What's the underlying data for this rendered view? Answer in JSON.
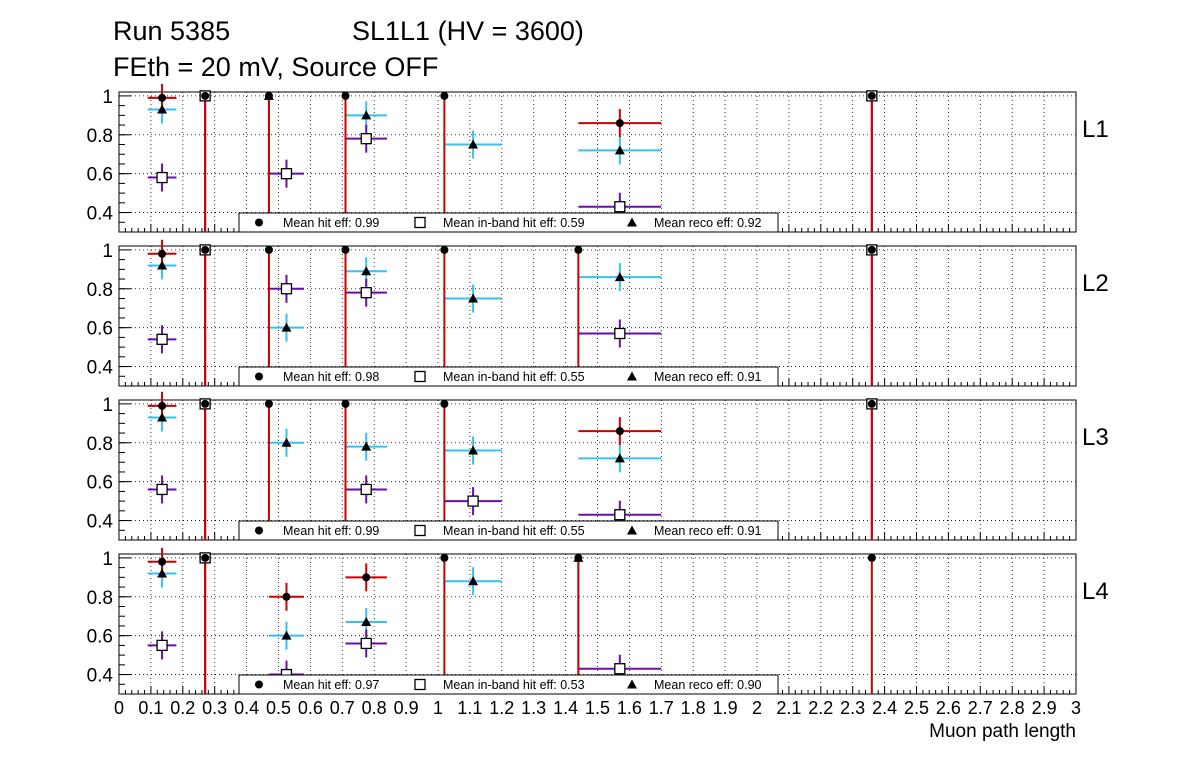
{
  "title": {
    "run": "Run 5385",
    "chamber": "SL1L1 (HV = 3600)",
    "line2": "FEth = 20 mV, Source OFF"
  },
  "colors": {
    "hit": "#cc0000",
    "inband": "#6a0dad",
    "reco": "#33c3ef",
    "marker": "#000000",
    "grid": "#000000"
  },
  "chart_data": {
    "type": "scatter",
    "xlabel": "Muon path length",
    "xlim": [
      0,
      3
    ],
    "ylim": [
      0.3,
      1.02
    ],
    "y_ticks": [
      0.4,
      0.6,
      0.8,
      1
    ],
    "y_tick_labels": [
      "0.4",
      "0.6",
      "0.8",
      "1"
    ],
    "x_ticks": [
      0,
      0.1,
      0.2,
      0.3,
      0.4,
      0.5,
      0.6,
      0.7,
      0.8,
      0.9,
      1,
      1.1,
      1.2,
      1.3,
      1.4,
      1.5,
      1.6,
      1.7,
      1.8,
      1.9,
      2,
      2.1,
      2.2,
      2.3,
      2.4,
      2.5,
      2.6,
      2.7,
      2.8,
      2.9,
      3
    ],
    "x_tick_labels": [
      "0",
      "0.1",
      "0.2",
      "0.3",
      "0.4",
      "0.5",
      "0.6",
      "0.7",
      "0.8",
      "0.9",
      "1",
      "1.1",
      "1.2",
      "1.3",
      "1.4",
      "1.5",
      "1.6",
      "1.7",
      "1.8",
      "1.9",
      "2",
      "2.1",
      "2.2",
      "2.3",
      "2.4",
      "2.5",
      "2.6",
      "2.7",
      "2.8",
      "2.9",
      "3"
    ],
    "grid": true,
    "legend_labels": {
      "hit": "Mean hit  eff:",
      "inband": "Mean in-band hit eff:",
      "reco": "Mean reco eff:"
    },
    "panels": [
      {
        "label": "L1",
        "means": {
          "hit": "0.99",
          "inband": "0.59",
          "reco": "0.92"
        },
        "series": {
          "hit": [
            [
              0.09,
              0.18,
              0.99
            ],
            [
              0.27,
              0.27,
              1.0
            ],
            [
              0.47,
              0.47,
              1.0
            ],
            [
              0.71,
              0.71,
              1.0
            ],
            [
              1.02,
              1.02,
              1.0
            ],
            [
              1.44,
              1.7,
              0.86
            ],
            [
              2.36,
              2.36,
              1.0
            ]
          ],
          "inband": [
            [
              0.09,
              0.18,
              0.58
            ],
            [
              0.27,
              0.27,
              1.0
            ],
            [
              0.47,
              0.58,
              0.6
            ],
            [
              0.71,
              0.84,
              0.78
            ],
            [
              1.44,
              1.7,
              0.43
            ],
            [
              2.36,
              2.36,
              1.0
            ]
          ],
          "reco": [
            [
              0.09,
              0.18,
              0.93
            ],
            [
              0.27,
              0.27,
              1.0
            ],
            [
              0.47,
              0.47,
              1.0
            ],
            [
              0.71,
              0.84,
              0.9
            ],
            [
              1.02,
              1.2,
              0.75
            ],
            [
              1.44,
              1.7,
              0.72
            ],
            [
              2.36,
              2.36,
              1.0
            ]
          ]
        }
      },
      {
        "label": "L2",
        "means": {
          "hit": "0.98",
          "inband": "0.55",
          "reco": "0.91"
        },
        "series": {
          "hit": [
            [
              0.09,
              0.18,
              0.98
            ],
            [
              0.27,
              0.27,
              1.0
            ],
            [
              0.47,
              0.47,
              1.0
            ],
            [
              0.71,
              0.71,
              1.0
            ],
            [
              1.02,
              1.02,
              1.0
            ],
            [
              1.44,
              1.44,
              1.0
            ],
            [
              2.36,
              2.36,
              1.0
            ]
          ],
          "inband": [
            [
              0.09,
              0.18,
              0.54
            ],
            [
              0.27,
              0.27,
              1.0
            ],
            [
              0.47,
              0.58,
              0.8
            ],
            [
              0.71,
              0.84,
              0.78
            ],
            [
              1.44,
              1.7,
              0.57
            ],
            [
              2.36,
              2.36,
              1.0
            ]
          ],
          "reco": [
            [
              0.09,
              0.18,
              0.92
            ],
            [
              0.27,
              0.27,
              1.0
            ],
            [
              0.47,
              0.58,
              0.6
            ],
            [
              0.71,
              0.84,
              0.89
            ],
            [
              1.02,
              1.2,
              0.75
            ],
            [
              1.44,
              1.7,
              0.86
            ],
            [
              2.36,
              2.36,
              1.0
            ]
          ]
        }
      },
      {
        "label": "L3",
        "means": {
          "hit": "0.99",
          "inband": "0.55",
          "reco": "0.91"
        },
        "series": {
          "hit": [
            [
              0.09,
              0.18,
              0.99
            ],
            [
              0.27,
              0.27,
              1.0
            ],
            [
              0.47,
              0.47,
              1.0
            ],
            [
              0.71,
              0.71,
              1.0
            ],
            [
              1.02,
              1.02,
              1.0
            ],
            [
              1.44,
              1.7,
              0.86
            ],
            [
              2.36,
              2.36,
              1.0
            ]
          ],
          "inband": [
            [
              0.09,
              0.18,
              0.56
            ],
            [
              0.27,
              0.27,
              1.0
            ],
            [
              0.71,
              0.84,
              0.56
            ],
            [
              1.02,
              1.2,
              0.5
            ],
            [
              1.44,
              1.7,
              0.43
            ],
            [
              2.36,
              2.36,
              1.0
            ]
          ],
          "reco": [
            [
              0.09,
              0.18,
              0.93
            ],
            [
              0.27,
              0.27,
              1.0
            ],
            [
              0.47,
              0.58,
              0.8
            ],
            [
              0.71,
              0.84,
              0.78
            ],
            [
              1.02,
              1.2,
              0.76
            ],
            [
              1.44,
              1.7,
              0.72
            ],
            [
              2.36,
              2.36,
              1.0
            ]
          ]
        }
      },
      {
        "label": "L4",
        "means": {
          "hit": "0.97",
          "inband": "0.53",
          "reco": "0.90"
        },
        "series": {
          "hit": [
            [
              0.09,
              0.18,
              0.98
            ],
            [
              0.27,
              0.27,
              1.0
            ],
            [
              0.47,
              0.58,
              0.8
            ],
            [
              0.71,
              0.84,
              0.9
            ],
            [
              1.02,
              1.02,
              1.0
            ],
            [
              1.44,
              1.44,
              1.0
            ],
            [
              2.36,
              2.36,
              1.0
            ]
          ],
          "inband": [
            [
              0.09,
              0.18,
              0.55
            ],
            [
              0.27,
              0.27,
              1.0
            ],
            [
              0.47,
              0.58,
              0.4
            ],
            [
              0.71,
              0.84,
              0.56
            ],
            [
              1.44,
              1.7,
              0.43
            ]
          ],
          "reco": [
            [
              0.09,
              0.18,
              0.92
            ],
            [
              0.27,
              0.27,
              1.0
            ],
            [
              0.47,
              0.58,
              0.6
            ],
            [
              0.71,
              0.84,
              0.67
            ],
            [
              1.02,
              1.2,
              0.88
            ],
            [
              1.44,
              1.44,
              1.0
            ]
          ]
        }
      }
    ]
  }
}
